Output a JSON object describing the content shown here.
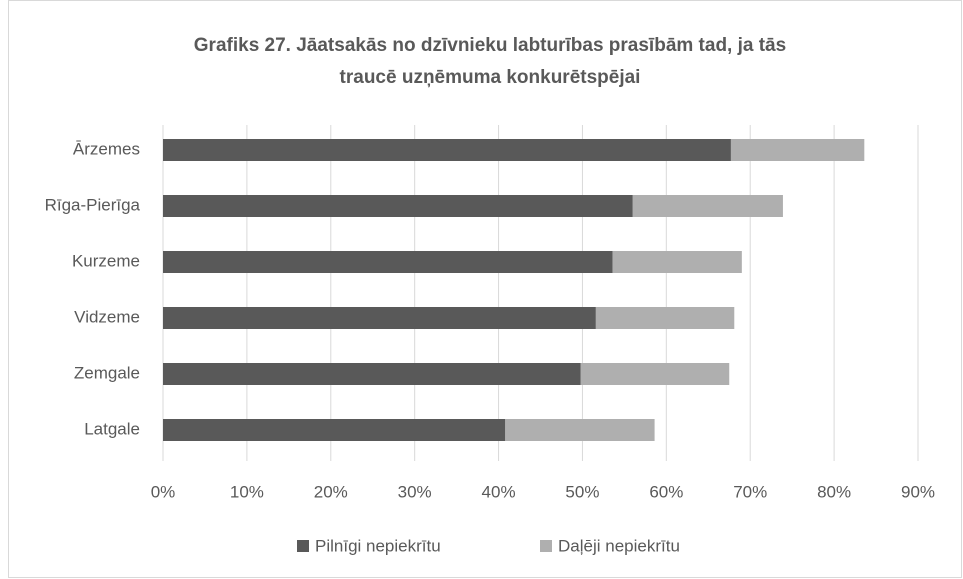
{
  "chart_data": {
    "type": "stacked-barh",
    "title": "Grafiks 27. Jāatsakās no dzīvnieku labturības prasībām tad, ja tās traucē uzņēmuma konkurētspējai",
    "categories": [
      "Ārzemes",
      "Rīga-Pierīga",
      "Kurzeme",
      "Vidzeme",
      "Zemgale",
      "Latgale"
    ],
    "series": [
      {
        "name": "Pilnīgi nepiekrītu",
        "color": "#595959",
        "values": [
          67.7,
          56.0,
          53.6,
          51.6,
          49.8,
          40.8
        ]
      },
      {
        "name": "Daļēji nepiekrītu",
        "color": "#afafaf",
        "values": [
          15.9,
          17.9,
          15.4,
          16.5,
          17.7,
          17.8
        ]
      }
    ],
    "xlim": [
      0,
      90
    ],
    "xticks": [
      {
        "value": 0,
        "label": "0%"
      },
      {
        "value": 10,
        "label": "10%"
      },
      {
        "value": 20,
        "label": "20%"
      },
      {
        "value": 30,
        "label": "30%"
      },
      {
        "value": 40,
        "label": "40%"
      },
      {
        "value": 50,
        "label": "50%"
      },
      {
        "value": 60,
        "label": "60%"
      },
      {
        "value": 70,
        "label": "70%"
      },
      {
        "value": 80,
        "label": "80%"
      },
      {
        "value": 90,
        "label": "90%"
      }
    ],
    "grid": true,
    "legend": "bottom"
  }
}
